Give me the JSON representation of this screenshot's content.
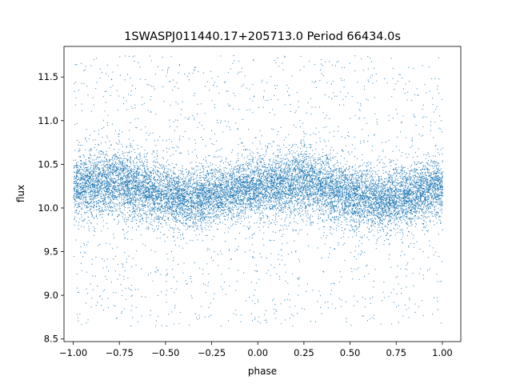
{
  "chart_data": {
    "type": "scatter",
    "title": "1SWASPJ011440.17+205713.0 Period 66434.0s",
    "xlabel": "phase",
    "ylabel": "flux",
    "xlim": [
      -1.05,
      1.1
    ],
    "ylim": [
      8.47,
      11.85
    ],
    "xticks": [
      -1.0,
      -0.75,
      -0.5,
      -0.25,
      0.0,
      0.25,
      0.5,
      0.75,
      1.0
    ],
    "xtick_labels": [
      "−1.00",
      "−0.75",
      "−0.50",
      "−0.25",
      "0.00",
      "0.25",
      "0.50",
      "0.75",
      "1.00"
    ],
    "yticks": [
      8.5,
      9.0,
      9.5,
      10.0,
      10.5,
      11.0,
      11.5
    ],
    "ytick_labels": [
      "8.5",
      "9.0",
      "9.5",
      "10.0",
      "10.5",
      "11.0",
      "11.5"
    ],
    "grid": false,
    "legend": "none",
    "marker_color": "#1f77b4",
    "x_range": [
      -1.0,
      1.0
    ],
    "y_range": [
      8.65,
      11.75
    ],
    "approx_points": 60000,
    "trend": {
      "description": "Folded light curve: dense band centred near 10.2 with shallow minima around phase -0.35 and 0.65",
      "phase": [
        -1.0,
        -0.75,
        -0.5,
        -0.35,
        -0.25,
        0.0,
        0.25,
        0.5,
        0.65,
        0.75,
        1.0
      ],
      "median_flux": [
        10.25,
        10.3,
        10.15,
        10.08,
        10.15,
        10.25,
        10.3,
        10.15,
        10.08,
        10.12,
        10.25
      ],
      "band_halfwidth": [
        0.3,
        0.35,
        0.32,
        0.3,
        0.3,
        0.3,
        0.35,
        0.32,
        0.3,
        0.32,
        0.3
      ]
    }
  }
}
